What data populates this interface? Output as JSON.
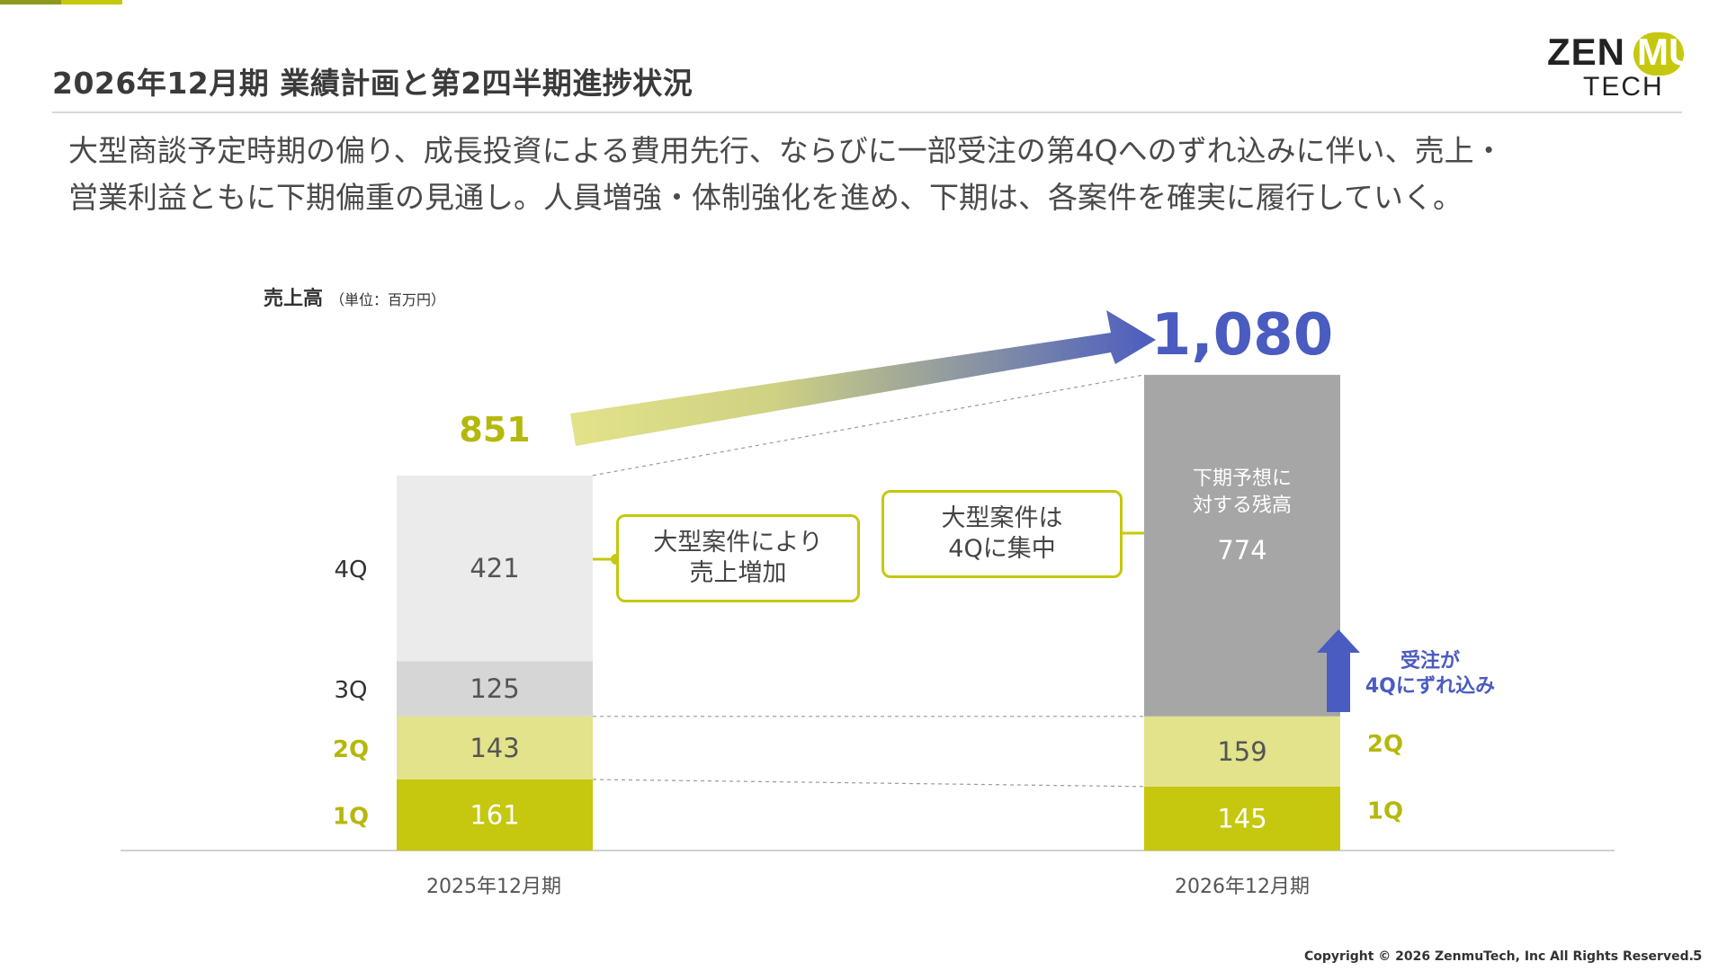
{
  "header": {
    "title": "2026年12月期 業績計画と第2四半期進捗状況",
    "logo_word": "ZENMU",
    "logo_sub": "TECH"
  },
  "summary": {
    "line1": "大型商談予定時期の偏り、成長投資による費用先行、ならびに一部受注の第4Qへのずれ込みに伴い、売上・",
    "line2": "営業利益ともに下期偏重の見通し。人員増強・体制強化を進め、下期は、各案件を確実に履行していく。"
  },
  "chart_data": {
    "type": "bar",
    "stacked": true,
    "ylabel": "売上高",
    "unit": "（単位：百万円）",
    "categories": [
      "2025年12月期",
      "2026年12月期"
    ],
    "totals": [
      851,
      1080
    ],
    "bars": [
      {
        "category": "2025年12月期",
        "segments": [
          {
            "label": "1Q",
            "value": 161,
            "color": "#c5c80e"
          },
          {
            "label": "2Q",
            "value": 143,
            "color": "#e2e38a"
          },
          {
            "label": "3Q",
            "value": 125,
            "color": "#d6d6d6"
          },
          {
            "label": "4Q",
            "value": 421,
            "color": "#ebebeb"
          }
        ]
      },
      {
        "category": "2026年12月期",
        "segments": [
          {
            "label": "1Q",
            "value": 145,
            "color": "#c5c80e"
          },
          {
            "label": "2Q",
            "value": 159,
            "color": "#e2e38a"
          },
          {
            "label": "下期予想に対する残高",
            "value": 774,
            "color": "#a6a6a6"
          }
        ]
      }
    ],
    "remaining_label_line1": "下期予想に",
    "remaining_label_line2": "対する残高",
    "colors": {
      "accent": "#c5c80e",
      "accent_light": "#e2e38a",
      "blue": "#4a5cc0",
      "gray_dark": "#a6a6a6"
    }
  },
  "callouts": {
    "left_line1": "大型案件により",
    "left_line2": "売上増加",
    "right_line1": "大型案件は",
    "right_line2": "4Qに集中"
  },
  "annotation": {
    "line1": "受注が",
    "line2": "4Qにずれ込み"
  },
  "footer": {
    "copyright": "Copyright © 2026 ZenmuTech, Inc All Rights Reserved.",
    "page": "5"
  }
}
